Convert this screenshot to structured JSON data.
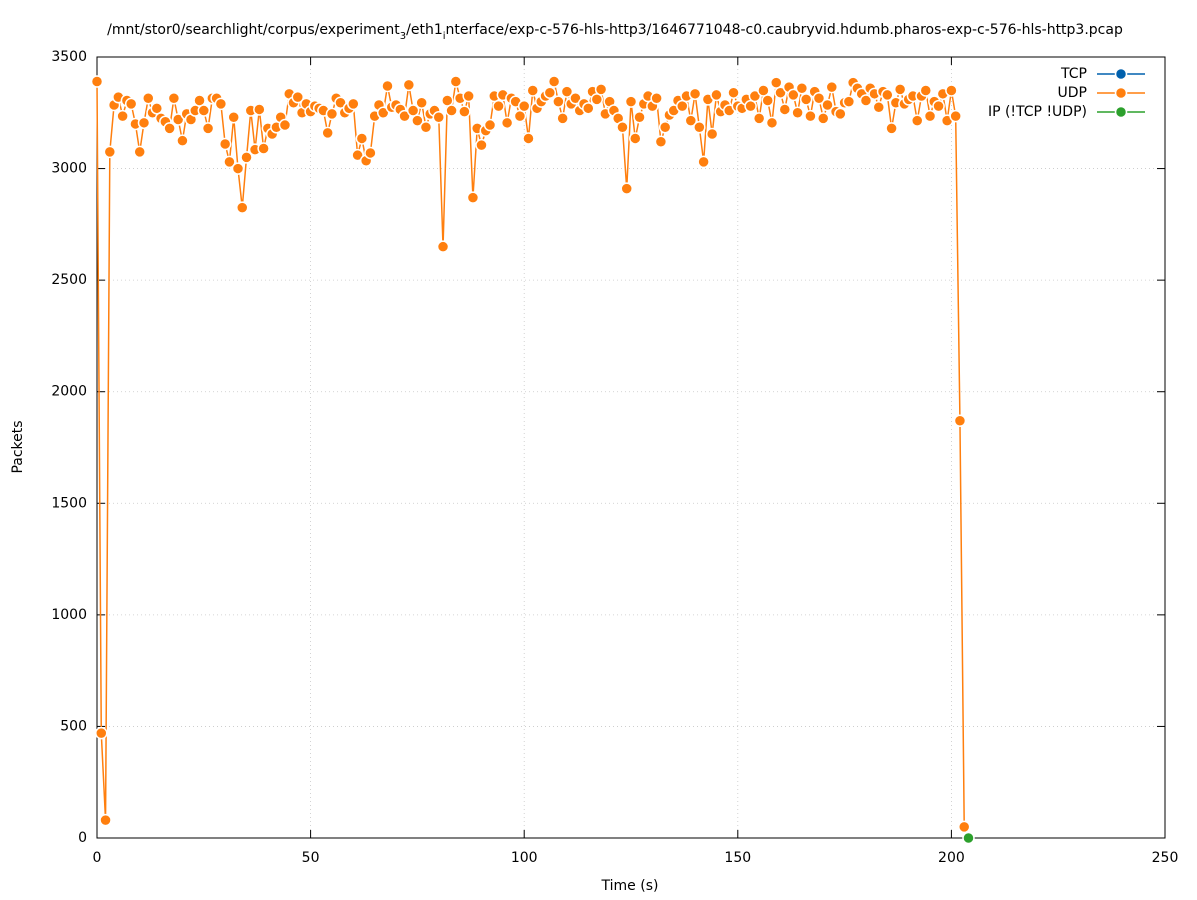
{
  "chart_data": {
    "type": "line",
    "title": [
      {
        "text": "/mnt/stor0/searchlight/corpus/experiment"
      },
      {
        "text": "3",
        "sub": true
      },
      {
        "text": "/eth1"
      },
      {
        "text": "i",
        "sub": true
      },
      {
        "text": "nterface/exp-c-576-hls-http3/1646771048-c0.caubryvid.hdumb.pharos-exp-c-576-hls-http3.pcap"
      }
    ],
    "x_label": "Time (s)",
    "y_label": "Packets",
    "xlim": [
      0,
      250
    ],
    "xticks": [
      0,
      50,
      100,
      150,
      200,
      250
    ],
    "ylim": [
      0,
      3500
    ],
    "yticks": [
      0,
      500,
      1000,
      1500,
      2000,
      2500,
      3000,
      3500
    ],
    "grid": true,
    "legend": "top-right",
    "series": [
      {
        "name": "TCP",
        "color": "#0060ad",
        "x": [],
        "values": []
      },
      {
        "name": "UDP",
        "color": "#ff7f0e",
        "x": [
          0,
          1,
          2,
          3,
          4,
          5,
          6,
          7,
          8,
          9,
          10,
          11,
          12,
          13,
          14,
          15,
          16,
          17,
          18,
          19,
          20,
          21,
          22,
          23,
          24,
          25,
          26,
          27,
          28,
          29,
          30,
          31,
          32,
          33,
          34,
          35,
          36,
          37,
          38,
          39,
          40,
          41,
          42,
          43,
          44,
          45,
          46,
          47,
          48,
          49,
          50,
          51,
          52,
          53,
          54,
          55,
          56,
          57,
          58,
          59,
          60,
          61,
          62,
          63,
          64,
          65,
          66,
          67,
          68,
          69,
          70,
          71,
          72,
          73,
          74,
          75,
          76,
          77,
          78,
          79,
          80,
          81,
          82,
          83,
          84,
          85,
          86,
          87,
          88,
          89,
          90,
          91,
          92,
          93,
          94,
          95,
          96,
          97,
          98,
          99,
          100,
          101,
          102,
          103,
          104,
          105,
          106,
          107,
          108,
          109,
          110,
          111,
          112,
          113,
          114,
          115,
          116,
          117,
          118,
          119,
          120,
          121,
          122,
          123,
          124,
          125,
          126,
          127,
          128,
          129,
          130,
          131,
          132,
          133,
          134,
          135,
          136,
          137,
          138,
          139,
          140,
          141,
          142,
          143,
          144,
          145,
          146,
          147,
          148,
          149,
          150,
          151,
          152,
          153,
          154,
          155,
          156,
          157,
          158,
          159,
          160,
          161,
          162,
          163,
          164,
          165,
          166,
          167,
          168,
          169,
          170,
          171,
          172,
          173,
          174,
          175,
          176,
          177,
          178,
          179,
          180,
          181,
          182,
          183,
          184,
          185,
          186,
          187,
          188,
          189,
          190,
          191,
          192,
          193,
          194,
          195,
          196,
          197,
          198,
          199,
          200,
          201,
          202,
          203
        ],
        "values": [
          3390,
          470,
          80,
          3075,
          3285,
          3320,
          3235,
          3305,
          3290,
          3200,
          3075,
          3205,
          3315,
          3250,
          3270,
          3225,
          3210,
          3180,
          3315,
          3220,
          3125,
          3245,
          3220,
          3260,
          3305,
          3260,
          3180,
          3315,
          3315,
          3290,
          3110,
          3030,
          3230,
          3000,
          2825,
          3050,
          3260,
          3085,
          3265,
          3090,
          3180,
          3155,
          3185,
          3230,
          3195,
          3335,
          3295,
          3320,
          3250,
          3290,
          3255,
          3280,
          3270,
          3260,
          3160,
          3245,
          3315,
          3295,
          3250,
          3270,
          3290,
          3060,
          3135,
          3035,
          3070,
          3235,
          3285,
          3250,
          3370,
          3275,
          3285,
          3265,
          3235,
          3375,
          3260,
          3215,
          3295,
          3185,
          3245,
          3260,
          3230,
          2650,
          3305,
          3260,
          3390,
          3315,
          3255,
          3325,
          2870,
          3180,
          3105,
          3170,
          3195,
          3325,
          3280,
          3330,
          3205,
          3315,
          3300,
          3235,
          3280,
          3135,
          3350,
          3270,
          3300,
          3325,
          3340,
          3390,
          3300,
          3225,
          3345,
          3290,
          3315,
          3260,
          3290,
          3270,
          3345,
          3310,
          3355,
          3245,
          3300,
          3260,
          3225,
          3185,
          2910,
          3300,
          3135,
          3230,
          3290,
          3325,
          3280,
          3315,
          3120,
          3185,
          3240,
          3260,
          3305,
          3280,
          3325,
          3215,
          3335,
          3185,
          3030,
          3310,
          3155,
          3330,
          3255,
          3285,
          3260,
          3340,
          3280,
          3270,
          3310,
          3280,
          3325,
          3225,
          3350,
          3305,
          3205,
          3385,
          3340,
          3265,
          3365,
          3330,
          3250,
          3360,
          3310,
          3235,
          3345,
          3315,
          3225,
          3285,
          3365,
          3255,
          3245,
          3295,
          3300,
          3385,
          3360,
          3335,
          3305,
          3360,
          3335,
          3275,
          3345,
          3330,
          3180,
          3295,
          3355,
          3290,
          3310,
          3325,
          3215,
          3325,
          3350,
          3235,
          3300,
          3280,
          3335,
          3215,
          3350,
          3235,
          1870,
          50
        ]
      },
      {
        "name": "IP (!TCP  !UDP)",
        "color": "#2ca02c",
        "x": [
          204
        ],
        "values": [
          0
        ]
      }
    ]
  }
}
